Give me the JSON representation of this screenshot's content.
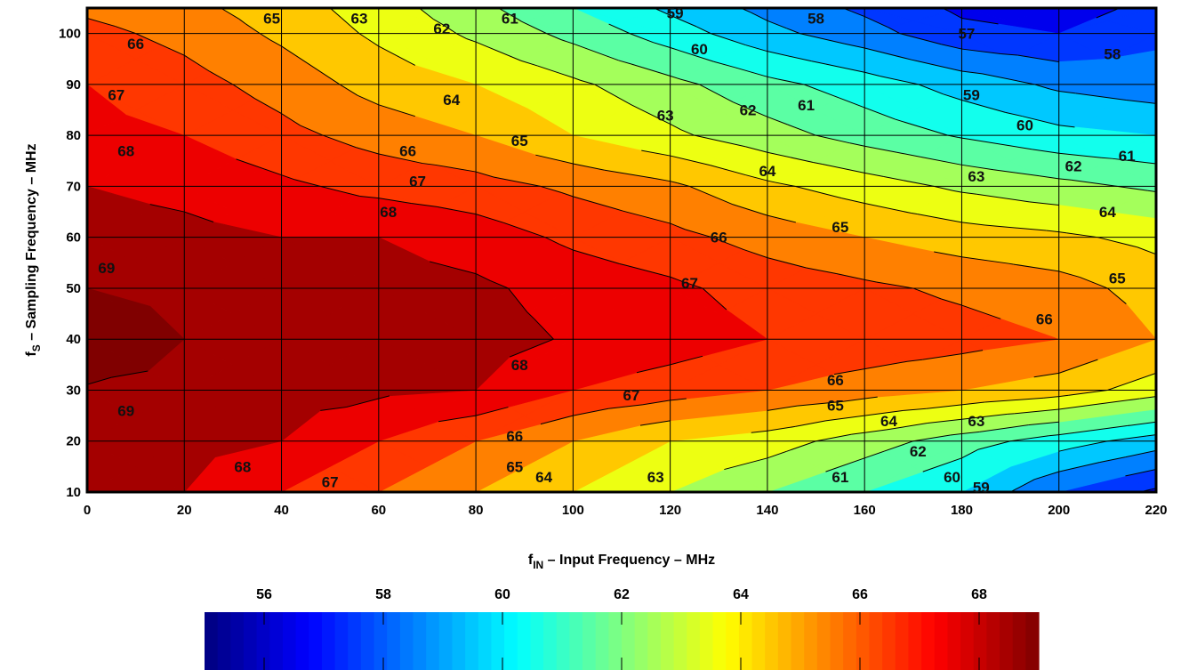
{
  "chart_data": {
    "type": "heatmap",
    "subtype": "filled-contour",
    "xlabel_main": "f",
    "xlabel_sub": "IN",
    "xlabel_rest": " – Input Frequency – MHz",
    "ylabel_main": "f",
    "ylabel_sub": "S",
    "ylabel_rest": " – Sampling Frequency  – MHz",
    "xlim": [
      0,
      220
    ],
    "ylim": [
      10,
      105
    ],
    "x_ticks": [
      0,
      20,
      40,
      60,
      80,
      100,
      120,
      140,
      160,
      180,
      200,
      220
    ],
    "y_ticks": [
      10,
      20,
      30,
      40,
      50,
      60,
      70,
      80,
      90,
      100
    ],
    "grid": true,
    "z_unit_note": "",
    "x": [
      0,
      20,
      40,
      60,
      80,
      100,
      120,
      140,
      160,
      180,
      200,
      220
    ],
    "y": [
      10,
      20,
      30,
      40,
      50,
      60,
      70,
      80,
      90,
      100,
      105
    ],
    "z": [
      [
        68.3,
        68.0,
        67.0,
        66.0,
        65.0,
        64.0,
        63.0,
        62.0,
        61.0,
        60.0,
        58.0,
        56.8
      ],
      [
        68.6,
        68.3,
        68.0,
        67.0,
        66.0,
        65.0,
        64.0,
        63.5,
        62.5,
        61.5,
        60.5,
        59.5
      ],
      [
        68.9,
        68.7,
        68.4,
        68.2,
        68.0,
        67.0,
        66.5,
        66.0,
        65.5,
        65.0,
        64.5,
        63.5
      ],
      [
        69.8,
        69.0,
        68.8,
        68.6,
        68.4,
        67.9,
        67.5,
        67.0,
        66.7,
        66.4,
        66.0,
        65.0
      ],
      [
        69.0,
        68.7,
        68.5,
        68.4,
        68.2,
        67.6,
        67.2,
        66.6,
        66.2,
        65.8,
        65.4,
        64.6
      ],
      [
        68.5,
        68.3,
        68.0,
        68.0,
        67.5,
        66.8,
        66.3,
        65.6,
        65.0,
        64.5,
        64.2,
        63.7
      ],
      [
        68.0,
        67.7,
        67.2,
        66.7,
        66.4,
        65.8,
        65.2,
        64.2,
        63.5,
        62.8,
        62.3,
        61.8
      ],
      [
        67.3,
        67.0,
        66.3,
        65.6,
        65.0,
        64.0,
        63.2,
        62.4,
        61.6,
        60.9,
        60.3,
        60.0
      ],
      [
        67.0,
        66.4,
        65.6,
        64.6,
        64.0,
        63.2,
        62.3,
        61.3,
        60.5,
        59.6,
        58.8,
        58.4
      ],
      [
        66.3,
        65.7,
        64.8,
        63.8,
        62.8,
        61.7,
        60.5,
        59.3,
        58.4,
        57.3,
        57.0,
        57.8
      ],
      [
        65.8,
        65.3,
        64.5,
        63.5,
        62.3,
        61.0,
        59.8,
        58.7,
        57.8,
        56.8,
        56.5,
        57.3
      ]
    ],
    "contour_levels": [
      56,
      57,
      58,
      59,
      60,
      61,
      62,
      63,
      64,
      65,
      66,
      67,
      68,
      69
    ],
    "colormap": "jet",
    "colorbar": {
      "range": [
        55,
        69
      ],
      "tick_labels": [
        "56",
        "58",
        "60",
        "62",
        "64",
        "66",
        "68"
      ],
      "tick_values": [
        56,
        58,
        60,
        62,
        64,
        66,
        68
      ]
    },
    "contour_labels": [
      {
        "text": "65",
        "x": 38,
        "y": 103
      },
      {
        "text": "63",
        "x": 56,
        "y": 103
      },
      {
        "text": "62",
        "x": 73,
        "y": 101
      },
      {
        "text": "61",
        "x": 87,
        "y": 103
      },
      {
        "text": "59",
        "x": 121,
        "y": 104
      },
      {
        "text": "58",
        "x": 150,
        "y": 103
      },
      {
        "text": "66",
        "x": 10,
        "y": 98
      },
      {
        "text": "60",
        "x": 126,
        "y": 97
      },
      {
        "text": "57",
        "x": 181,
        "y": 100
      },
      {
        "text": "58",
        "x": 211,
        "y": 96
      },
      {
        "text": "67",
        "x": 6,
        "y": 88
      },
      {
        "text": "64",
        "x": 75,
        "y": 87
      },
      {
        "text": "63",
        "x": 119,
        "y": 84
      },
      {
        "text": "62",
        "x": 136,
        "y": 85
      },
      {
        "text": "61",
        "x": 148,
        "y": 86
      },
      {
        "text": "59",
        "x": 182,
        "y": 88
      },
      {
        "text": "60",
        "x": 193,
        "y": 82
      },
      {
        "text": "65",
        "x": 89,
        "y": 79
      },
      {
        "text": "68",
        "x": 8,
        "y": 77
      },
      {
        "text": "66",
        "x": 66,
        "y": 77
      },
      {
        "text": "61",
        "x": 214,
        "y": 76
      },
      {
        "text": "64",
        "x": 140,
        "y": 73
      },
      {
        "text": "62",
        "x": 203,
        "y": 74
      },
      {
        "text": "63",
        "x": 183,
        "y": 72
      },
      {
        "text": "67",
        "x": 68,
        "y": 71
      },
      {
        "text": "68",
        "x": 62,
        "y": 65
      },
      {
        "text": "64",
        "x": 210,
        "y": 65
      },
      {
        "text": "65",
        "x": 155,
        "y": 62
      },
      {
        "text": "66",
        "x": 130,
        "y": 60
      },
      {
        "text": "69",
        "x": 4,
        "y": 54
      },
      {
        "text": "67",
        "x": 124,
        "y": 51
      },
      {
        "text": "65",
        "x": 212,
        "y": 52
      },
      {
        "text": "66",
        "x": 197,
        "y": 44
      },
      {
        "text": "68",
        "x": 89,
        "y": 35
      },
      {
        "text": "66",
        "x": 154,
        "y": 32
      },
      {
        "text": "67",
        "x": 112,
        "y": 29
      },
      {
        "text": "69",
        "x": 8,
        "y": 26
      },
      {
        "text": "65",
        "x": 154,
        "y": 27
      },
      {
        "text": "64",
        "x": 165,
        "y": 24
      },
      {
        "text": "63",
        "x": 183,
        "y": 24
      },
      {
        "text": "66",
        "x": 88,
        "y": 21
      },
      {
        "text": "62",
        "x": 171,
        "y": 18
      },
      {
        "text": "68",
        "x": 32,
        "y": 15
      },
      {
        "text": "65",
        "x": 88,
        "y": 15
      },
      {
        "text": "67",
        "x": 50,
        "y": 12
      },
      {
        "text": "64",
        "x": 94,
        "y": 13
      },
      {
        "text": "63",
        "x": 117,
        "y": 13
      },
      {
        "text": "61",
        "x": 155,
        "y": 13
      },
      {
        "text": "60",
        "x": 178,
        "y": 13
      },
      {
        "text": "59",
        "x": 184,
        "y": 11
      }
    ]
  }
}
